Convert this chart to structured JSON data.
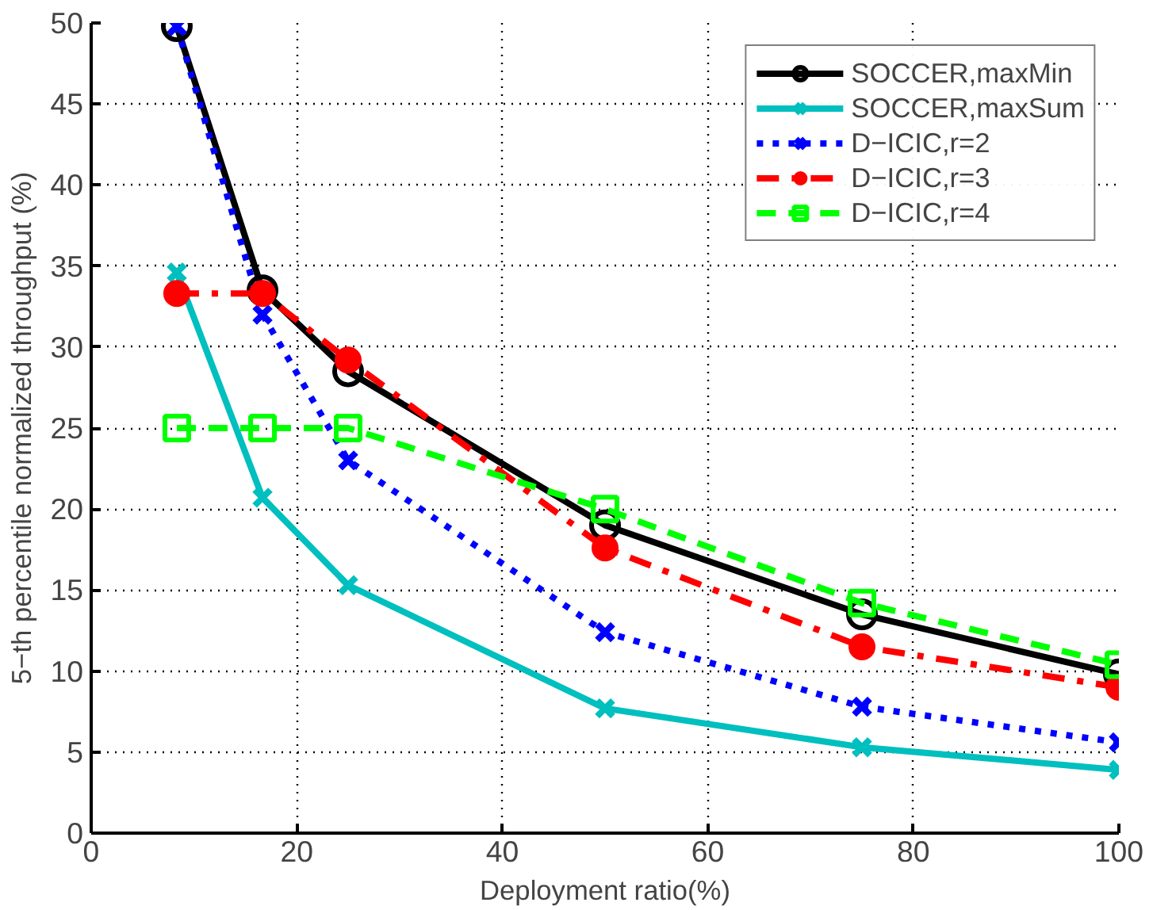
{
  "chart_data": {
    "type": "line",
    "xlabel": "Deployment ratio(%)",
    "ylabel": "5−th percentile normalized throughput (%)",
    "x": [
      8.33,
      16.67,
      25,
      50,
      75,
      100
    ],
    "series": [
      {
        "name": "SOCCER,maxMin",
        "color": "#000000",
        "marker": "circle",
        "line_style": "solid",
        "values": [
          49.8,
          33.5,
          28.5,
          19,
          13.5,
          9.8
        ]
      },
      {
        "name": "SOCCER,maxSum",
        "color": "#00bfbf",
        "marker": "cross",
        "line_style": "solid",
        "values": [
          34.6,
          20.7,
          15.3,
          7.7,
          5.3,
          3.9
        ]
      },
      {
        "name": "D−ICIC,r=2",
        "color": "#0000ff",
        "marker": "cross",
        "line_style": "dotted",
        "values": [
          49.8,
          32,
          23,
          12.4,
          7.8,
          5.6
        ]
      },
      {
        "name": "D−ICIC,r=3",
        "color": "#ff0000",
        "marker": "filled_circle",
        "line_style": "dashdot",
        "values": [
          33.3,
          33.3,
          29.2,
          17.6,
          11.5,
          9.0
        ]
      },
      {
        "name": "D−ICIC,r=4",
        "color": "#00ff00",
        "marker": "square",
        "line_style": "dashed",
        "values": [
          25,
          25,
          25,
          20,
          14.2,
          10.4
        ]
      }
    ],
    "xlim": [
      0,
      100
    ],
    "xticks": [
      0,
      20,
      40,
      60,
      80,
      100
    ],
    "ylim": [
      0,
      50
    ],
    "yticks": [
      0,
      5,
      10,
      15,
      20,
      25,
      30,
      35,
      40,
      45,
      50
    ],
    "grid": true,
    "legend": "top right"
  }
}
